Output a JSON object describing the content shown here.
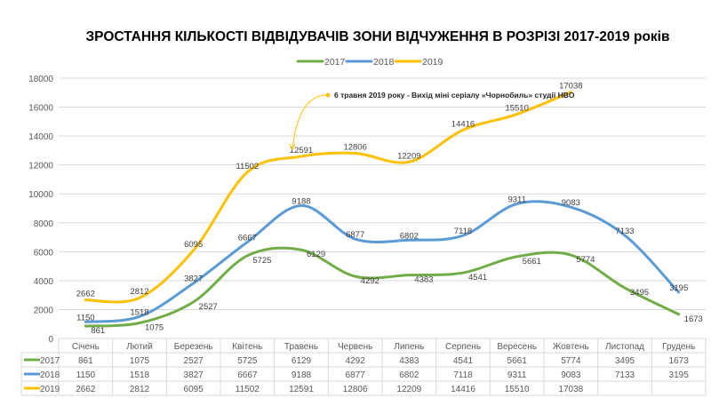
{
  "chart_data": {
    "type": "line",
    "title": "ЗРОСТАННЯ КІЛЬКОСТІ ВІДВІДУВАЧІВ ЗОНИ ВІДЧУЖЕННЯ В РОЗРІЗІ 2017-2019 років",
    "xlabel": "",
    "ylabel": "",
    "ylim": [
      0,
      18000
    ],
    "yticks": [
      0,
      2000,
      4000,
      6000,
      8000,
      10000,
      12000,
      14000,
      16000,
      18000
    ],
    "grid": true,
    "legend_position": "top-center",
    "categories": [
      "Січень",
      "Лютий",
      "Березень",
      "Квітень",
      "Травень",
      "Червень",
      "Липень",
      "Серпень",
      "Вересень",
      "Жовтень",
      "Листопад",
      "Грудень"
    ],
    "series": [
      {
        "name": "2017",
        "color": "#70ad47",
        "values": [
          861,
          1075,
          2527,
          5725,
          6129,
          4292,
          4383,
          4541,
          5661,
          5774,
          3495,
          1673
        ]
      },
      {
        "name": "2018",
        "color": "#5b9bd5",
        "values": [
          1150,
          1518,
          3827,
          6667,
          9188,
          6877,
          6802,
          7118,
          9311,
          9083,
          7133,
          3195
        ]
      },
      {
        "name": "2019",
        "color": "#ffc000",
        "values": [
          2662,
          2812,
          6095,
          11502,
          12591,
          12806,
          12209,
          14416,
          15510,
          17038,
          null,
          null
        ]
      }
    ],
    "annotation": {
      "text": "6 травня 2019 року - Вихід міні серіалу «Чорнобиль» студії HBO",
      "category": "Травень",
      "series": "2019"
    },
    "data_table": true
  }
}
